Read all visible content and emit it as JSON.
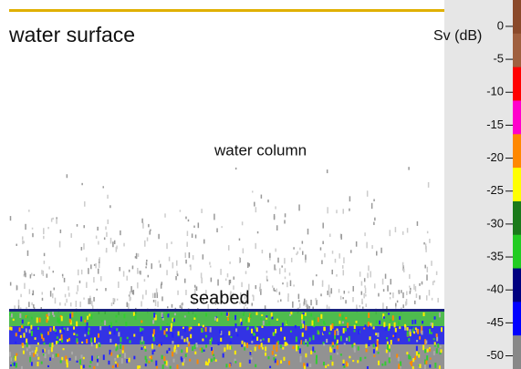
{
  "chart_data": {
    "type": "echogram",
    "annotations": {
      "surface": "water surface",
      "column": "water column",
      "seabed": "seabed"
    },
    "colorbar": {
      "label": "Sv (dB)",
      "ylim": [
        4,
        -52
      ],
      "yticks": [
        0,
        -5,
        -10,
        -15,
        -20,
        -25,
        -30,
        -35,
        -40,
        -45,
        -50
      ],
      "colors": [
        "#8b4a2b",
        "#a0603f",
        "#ff0000",
        "#ff00cc",
        "#ff8800",
        "#ffff00",
        "#1a7a1a",
        "#22cc22",
        "#000080",
        "#0000ff",
        "#888888"
      ]
    }
  }
}
